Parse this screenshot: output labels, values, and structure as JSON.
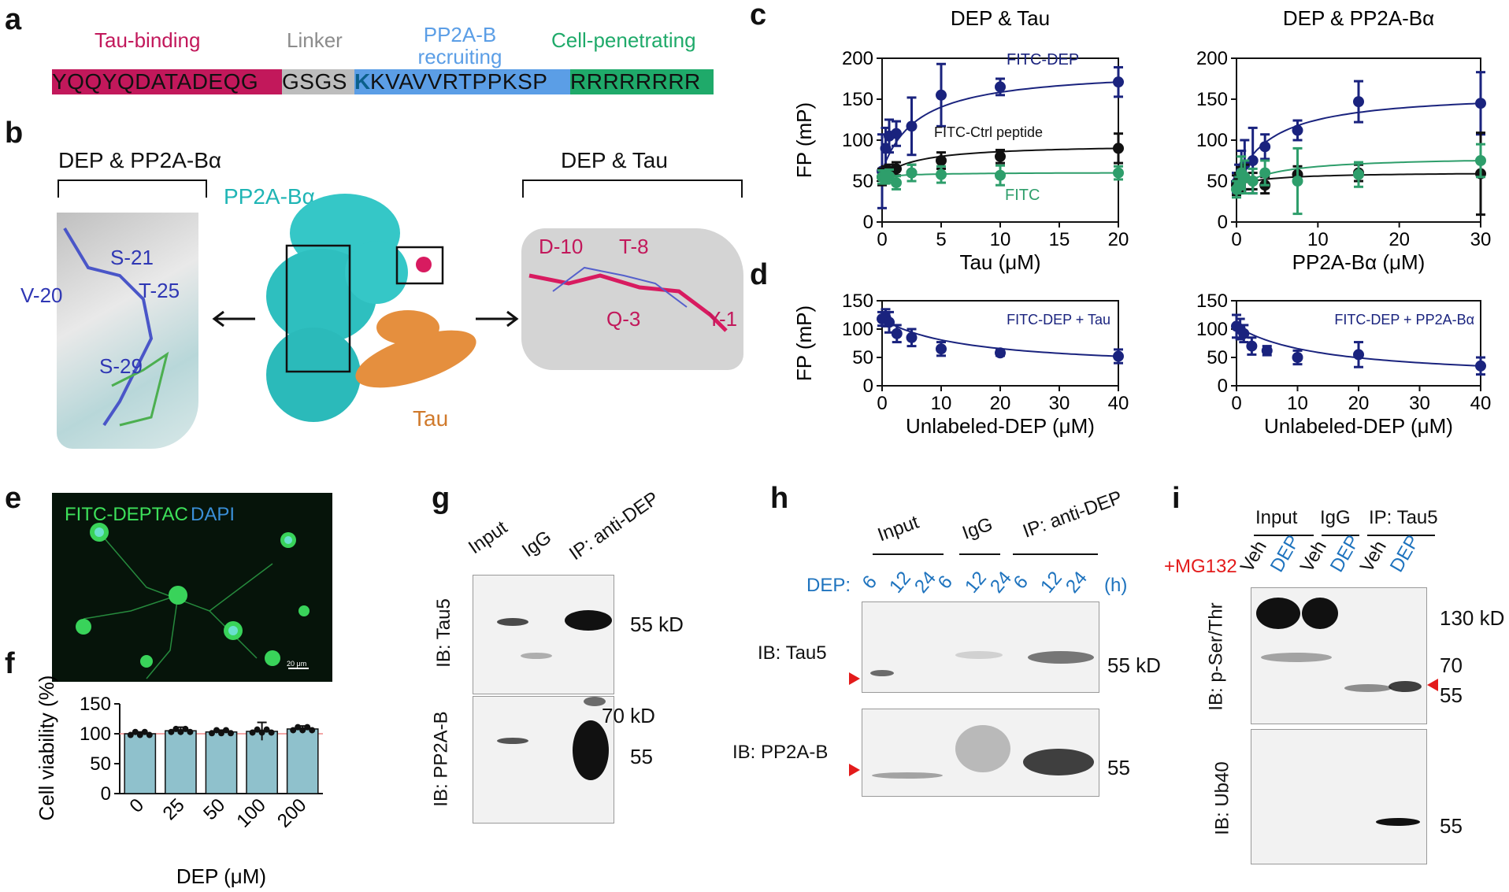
{
  "panels": {
    "a": "a",
    "b": "b",
    "c": "c",
    "d": "d",
    "e": "e",
    "f": "f",
    "g": "g",
    "h": "h",
    "i": "i"
  },
  "panel_a": {
    "regions": [
      "Tau-binding",
      "Linker",
      "PP2A-B recruiting",
      "Cell-penetrating"
    ],
    "region_colors": [
      "#c2185b",
      "#8c8c8c",
      "#5b9ee6",
      "#1faa6a"
    ],
    "seq": {
      "tau": "YQQYQDATADEQG",
      "linker": "GSGS",
      "k": "K",
      "pp2a": "KVAVVRTPPKSP",
      "cpp": "RRRRRRRR"
    }
  },
  "panel_b": {
    "left_title": "DEP & PP2A-Bα",
    "right_title": "DEP & Tau",
    "pp2a_label": "PP2A-Bα",
    "tau_label": "Tau",
    "left_residues": [
      "S-21",
      "V-20",
      "T-25",
      "S-29"
    ],
    "right_residues": [
      "D-10",
      "T-8",
      "Q-3",
      "Y-1"
    ]
  },
  "chart_data": [
    {
      "type": "scatter",
      "panel": "c",
      "title": "DEP & Tau",
      "xlabel": "Tau (μM)",
      "ylabel": "FP (mP)",
      "xlim": [
        0,
        20
      ],
      "ylim": [
        0,
        200
      ],
      "xticks": [
        0,
        5,
        10,
        15,
        20
      ],
      "yticks": [
        0,
        50,
        100,
        150,
        200
      ],
      "series": [
        {
          "name": "FITC-DEP",
          "color": "#1a237e",
          "x": [
            0,
            0.3,
            0.6,
            1.2,
            2.5,
            5,
            10,
            20
          ],
          "y": [
            62,
            90,
            105,
            108,
            117,
            155,
            165,
            171
          ],
          "err": [
            45,
            25,
            20,
            15,
            35,
            38,
            10,
            18
          ]
        },
        {
          "name": "FITC-Ctrl peptide",
          "color": "#111111",
          "x": [
            0,
            0.3,
            0.6,
            1.2,
            2.5,
            5,
            10,
            20
          ],
          "y": [
            55,
            60,
            62,
            65,
            60,
            75,
            80,
            90
          ],
          "err": [
            10,
            8,
            8,
            8,
            10,
            10,
            8,
            18
          ]
        },
        {
          "name": "FITC",
          "color": "#2e9e6b",
          "x": [
            0,
            0.3,
            0.6,
            1.2,
            2.5,
            5,
            10,
            20
          ],
          "y": [
            55,
            55,
            56,
            48,
            60,
            58,
            57,
            60
          ],
          "err": [
            8,
            8,
            8,
            8,
            10,
            10,
            12,
            8
          ]
        }
      ]
    },
    {
      "type": "scatter",
      "panel": "c",
      "title": "DEP & PP2A-Bα",
      "xlabel": "PP2A-Bα (μM)",
      "ylabel": "",
      "xlim": [
        0,
        30
      ],
      "ylim": [
        0,
        200
      ],
      "xticks": [
        0,
        10,
        20,
        30
      ],
      "yticks": [
        0,
        50,
        100,
        150,
        200
      ],
      "series": [
        {
          "name": "FITC-DEP",
          "color": "#1a237e",
          "x": [
            0,
            0.3,
            0.6,
            1,
            2,
            3.5,
            7.5,
            15,
            30
          ],
          "y": [
            48,
            55,
            62,
            70,
            75,
            92,
            112,
            147,
            145
          ],
          "err": [
            12,
            15,
            25,
            30,
            40,
            15,
            12,
            25,
            38
          ]
        },
        {
          "name": "FITC-Ctrl peptide",
          "color": "#111111",
          "x": [
            0,
            0.3,
            0.6,
            1,
            2,
            3.5,
            7.5,
            15,
            30
          ],
          "y": [
            45,
            50,
            52,
            55,
            50,
            45,
            58,
            60,
            59
          ],
          "err": [
            12,
            10,
            15,
            15,
            10,
            10,
            10,
            10,
            50
          ]
        },
        {
          "name": "FITC",
          "color": "#2e9e6b",
          "x": [
            0,
            0.3,
            0.6,
            1,
            2,
            3.5,
            7.5,
            15,
            30
          ],
          "y": [
            40,
            45,
            60,
            55,
            50,
            60,
            50,
            58,
            75
          ],
          "err": [
            10,
            10,
            20,
            20,
            15,
            15,
            40,
            15,
            20
          ]
        }
      ]
    },
    {
      "type": "scatter",
      "panel": "d",
      "title": "",
      "xlabel": "Unlabeled-DEP (μM)",
      "ylabel": "FP (mP)",
      "xlim": [
        0,
        40
      ],
      "ylim": [
        0,
        150
      ],
      "xticks": [
        0,
        10,
        20,
        30,
        40
      ],
      "yticks": [
        0,
        50,
        100,
        150
      ],
      "legend": "FITC-DEP + Tau",
      "series": [
        {
          "name": "FITC-DEP + Tau",
          "color": "#1a237e",
          "x": [
            0,
            0.6,
            1.2,
            2.5,
            5,
            10,
            20,
            40
          ],
          "y": [
            118,
            120,
            112,
            92,
            85,
            65,
            58,
            52
          ],
          "err": [
            12,
            15,
            18,
            15,
            15,
            12,
            5,
            12
          ]
        }
      ]
    },
    {
      "type": "scatter",
      "panel": "d",
      "title": "",
      "xlabel": "Unlabeled-DEP (μM)",
      "ylabel": "",
      "xlim": [
        0,
        40
      ],
      "ylim": [
        0,
        150
      ],
      "xticks": [
        0,
        10,
        20,
        30,
        40
      ],
      "yticks": [
        0,
        50,
        100,
        150
      ],
      "legend": "FITC-DEP + PP2A-Bα",
      "series": [
        {
          "name": "FITC-DEP + PP2A-Bα",
          "color": "#1a237e",
          "x": [
            0,
            0.6,
            1.2,
            2.5,
            5,
            10,
            20,
            40
          ],
          "y": [
            105,
            100,
            92,
            70,
            62,
            50,
            55,
            35
          ],
          "err": [
            20,
            18,
            15,
            15,
            8,
            12,
            22,
            15
          ]
        }
      ]
    },
    {
      "type": "bar",
      "panel": "f",
      "xlabel": "DEP (μM)",
      "ylabel": "Cell viability (%)",
      "categories": [
        "0",
        "25",
        "50",
        "100",
        "200"
      ],
      "values": [
        100,
        105,
        103,
        104,
        108
      ],
      "err": [
        3,
        6,
        3,
        15,
        5
      ],
      "ylim": [
        0,
        150
      ],
      "yticks": [
        0,
        50,
        100,
        150
      ],
      "color": "#8fc1cc"
    }
  ],
  "panel_e": {
    "title1": "FITC-DEPTAC",
    "title2": "DAPI",
    "scale": "20 μm"
  },
  "panel_g": {
    "lanes": [
      "Input",
      "IgG",
      "IP: anti-DEP"
    ],
    "blots": [
      "IB: Tau5",
      "IB: PP2A-B"
    ],
    "markers_top": [
      "55 kD"
    ],
    "markers_bottom": [
      "70 kD",
      "55"
    ]
  },
  "panel_h": {
    "groups": [
      "Input",
      "IgG",
      "IP: anti-DEP"
    ],
    "dep_label": "DEP:",
    "times": [
      "6",
      "12",
      "24",
      "6",
      "12",
      "24",
      "6",
      "12",
      "24"
    ],
    "unit": "(h)",
    "blots": [
      "IB: Tau5",
      "IB: PP2A-B"
    ],
    "markers": [
      "55 kD",
      "55"
    ]
  },
  "panel_i": {
    "groups": [
      "Input",
      "IgG",
      "IP: Tau5"
    ],
    "mg132": "+MG132",
    "lanes": [
      "Veh",
      "DEP",
      "Veh",
      "DEP",
      "Veh",
      "DEP"
    ],
    "blots": [
      "IB: p-Ser/Thr",
      "IB: Ub40"
    ],
    "markers_top": [
      "130 kD",
      "70",
      "55"
    ],
    "markers_bottom": [
      "55"
    ]
  }
}
